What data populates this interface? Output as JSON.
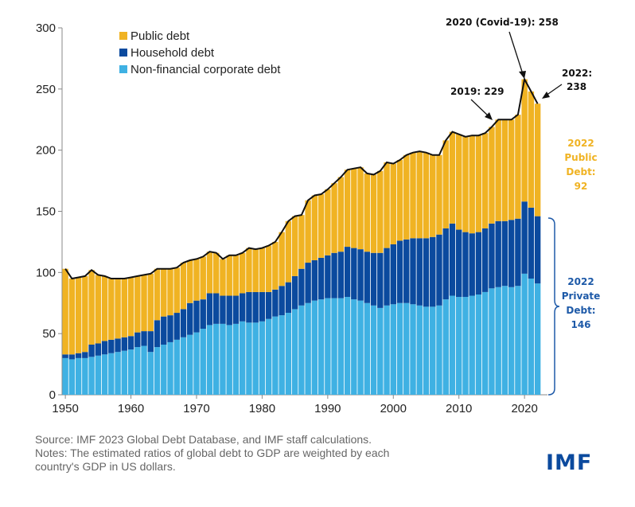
{
  "chart_data": {
    "type": "bar",
    "stacked": true,
    "x": [
      1950,
      1951,
      1952,
      1953,
      1954,
      1955,
      1956,
      1957,
      1958,
      1959,
      1960,
      1961,
      1962,
      1963,
      1964,
      1965,
      1966,
      1967,
      1968,
      1969,
      1970,
      1971,
      1972,
      1973,
      1974,
      1975,
      1976,
      1977,
      1978,
      1979,
      1980,
      1981,
      1982,
      1983,
      1984,
      1985,
      1986,
      1987,
      1988,
      1989,
      1990,
      1991,
      1992,
      1993,
      1994,
      1995,
      1996,
      1997,
      1998,
      1999,
      2000,
      2001,
      2002,
      2003,
      2004,
      2005,
      2006,
      2007,
      2008,
      2009,
      2010,
      2011,
      2012,
      2013,
      2014,
      2015,
      2016,
      2017,
      2018,
      2019,
      2020,
      2021,
      2022
    ],
    "series": [
      {
        "name": "Non-financial corporate debt",
        "color": "#3fb1e3",
        "values": [
          30,
          29,
          30,
          30,
          31,
          32,
          33,
          34,
          35,
          36,
          37,
          39,
          40,
          35,
          39,
          41,
          43,
          45,
          47,
          49,
          51,
          54,
          57,
          58,
          58,
          57,
          58,
          60,
          59,
          59,
          60,
          62,
          64,
          65,
          67,
          70,
          73,
          75,
          77,
          78,
          79,
          79,
          79,
          80,
          78,
          77,
          75,
          73,
          71,
          73,
          74,
          75,
          75,
          74,
          73,
          72,
          72,
          73,
          78,
          81,
          80,
          80,
          81,
          82,
          84,
          87,
          88,
          89,
          88,
          89,
          99,
          95,
          91
        ]
      },
      {
        "name": "Household debt",
        "color": "#0b4a9e",
        "values": [
          3,
          4,
          4,
          5,
          10,
          10,
          11,
          11,
          11,
          11,
          11,
          12,
          12,
          17,
          22,
          23,
          22,
          22,
          23,
          26,
          26,
          24,
          26,
          25,
          23,
          24,
          23,
          23,
          25,
          25,
          24,
          22,
          22,
          24,
          25,
          27,
          30,
          33,
          33,
          34,
          35,
          37,
          38,
          41,
          42,
          42,
          42,
          43,
          45,
          47,
          49,
          51,
          52,
          54,
          55,
          56,
          57,
          58,
          58,
          59,
          55,
          53,
          51,
          51,
          52,
          53,
          54,
          53,
          55,
          55,
          59,
          58,
          55
        ]
      },
      {
        "name": "Public debt",
        "color": "#f0b323",
        "values": [
          70,
          62,
          62,
          62,
          61,
          56,
          53,
          50,
          49,
          48,
          48,
          46,
          46,
          47,
          42,
          39,
          38,
          37,
          38,
          35,
          34,
          35,
          34,
          33,
          30,
          33,
          33,
          33,
          36,
          35,
          36,
          38,
          39,
          44,
          50,
          49,
          44,
          51,
          53,
          52,
          54,
          57,
          61,
          63,
          65,
          67,
          64,
          64,
          67,
          70,
          66,
          66,
          69,
          70,
          71,
          70,
          67,
          65,
          72,
          75,
          78,
          78,
          80,
          79,
          78,
          79,
          83,
          83,
          82,
          85,
          100,
          95,
          92
        ]
      }
    ],
    "total_line": true,
    "xlim": [
      1949.5,
      2023.5
    ],
    "ylim": [
      0,
      300
    ],
    "yticks": [
      0,
      50,
      100,
      150,
      200,
      250,
      300
    ],
    "xticks": [
      1950,
      1960,
      1970,
      1980,
      1990,
      2000,
      2010,
      2020
    ],
    "legend_position": "top-left",
    "annotations": {
      "covid": "2020 (Covid-19): 258",
      "y2019": "2019: 229",
      "y2022_line1": "2022:",
      "y2022_line2": "238"
    },
    "side_labels": {
      "public": [
        "2022",
        "Public",
        "Debt:",
        "92"
      ],
      "private": [
        "2022",
        "Private",
        "Debt:",
        "146"
      ]
    }
  },
  "footer": {
    "source": "Source: IMF 2023 Global Debt Database, and IMF staff calculations.",
    "notes_line1": "Notes: The estimated ratios of global debt to GDP are weighted by each",
    "notes_line2": "country's GDP in US dollars."
  },
  "logo": "IMF"
}
